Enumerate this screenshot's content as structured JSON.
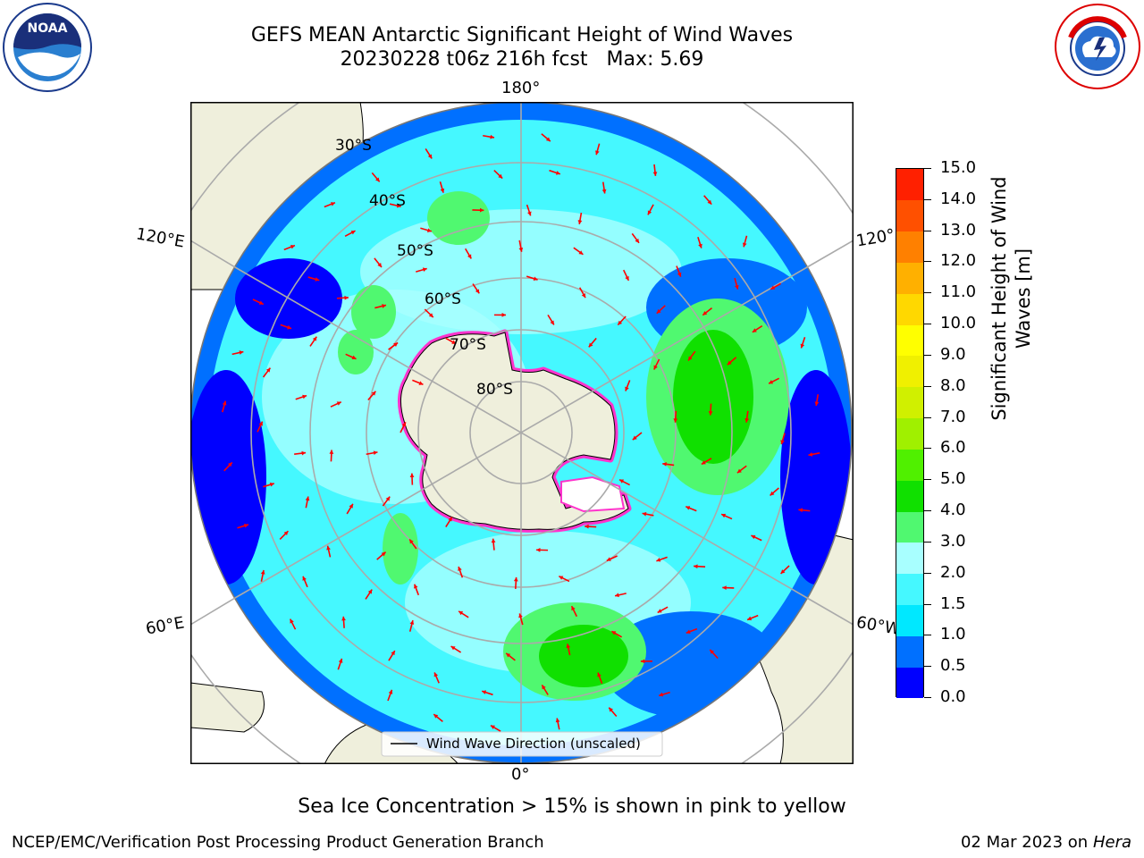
{
  "title": {
    "line1": "GEFS MEAN Antarctic Significant Height of Wind Waves",
    "line2_run": "20230228 t06z 216h fcst",
    "line2_max": "Max: 5.69"
  },
  "logos": {
    "left": "NOAA",
    "right": "NATIONAL WEATHER SERVICE"
  },
  "map": {
    "projection": "south-polar-stereographic",
    "longitude_labels": {
      "top": "180°",
      "bottom": "0°",
      "left_upper": "120°E",
      "left_lower": "60°E",
      "right_upper": "120°",
      "right_lower": "60°W"
    },
    "latitude_labels": [
      "30°S",
      "40°S",
      "50°S",
      "60°S",
      "70°S",
      "80°S"
    ],
    "legend": "Wind Wave Direction (unscaled)",
    "arrow_color": "#ff0000",
    "land_color": "#efefdc"
  },
  "colorbar": {
    "label": "Significant Height of Wind Waves [m]",
    "ticks": [
      "0.0",
      "0.5",
      "1.0",
      "1.5",
      "2.0",
      "3.0",
      "4.0",
      "5.0",
      "6.0",
      "7.0",
      "8.0",
      "9.0",
      "10.0",
      "11.0",
      "12.0",
      "13.0",
      "14.0",
      "15.0"
    ],
    "colors": [
      "#0000ff",
      "#0070ff",
      "#00e8ff",
      "#45f8ff",
      "#a8ffff",
      "#50f870",
      "#10e000",
      "#50f000",
      "#a0f000",
      "#d0f000",
      "#f0f000",
      "#ffff00",
      "#ffd800",
      "#ffb000",
      "#ff8000",
      "#ff5000",
      "#ff2000"
    ]
  },
  "subtitle": "Sea Ice Concentration > 15% is shown in pink to yellow",
  "footer": {
    "left": "NCEP/EMC/Verification Post Processing Product Generation Branch",
    "date": "02 Mar 2023 on",
    "host": "Hera"
  }
}
